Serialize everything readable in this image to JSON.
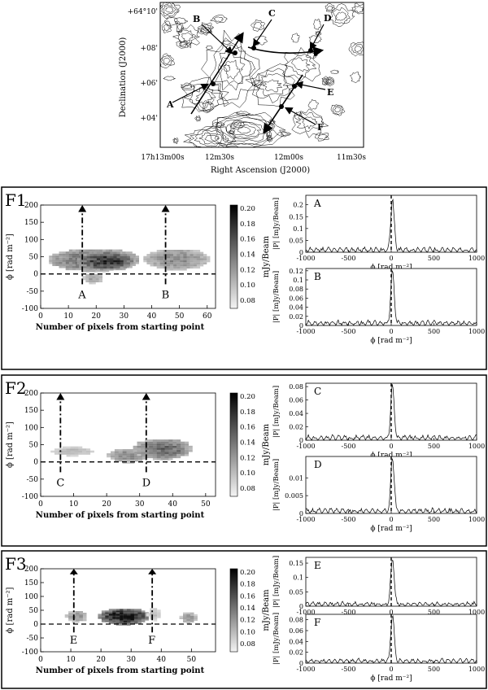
{
  "map": {
    "ylabel": "Declination (J2000)",
    "xlabel": "Right Ascension (J2000)",
    "yticks": [
      "+64°10'",
      "+08'",
      "+06'",
      "+04'"
    ],
    "xticks": [
      "17h13m00s",
      "12m30s",
      "12m00s",
      "11m30s"
    ],
    "points": [
      "A",
      "B",
      "C",
      "D",
      "E",
      "F"
    ]
  },
  "panels": [
    {
      "id": "F1",
      "map_xlabel": "Number of pixels from starting point",
      "map_ylabel": "ϕ [rad m⁻²]",
      "cbar_label": "mJy/Beam",
      "cbar_ticks": [
        "0.20",
        "0.18",
        "0.16",
        "0.14",
        "0.12",
        "0.10",
        "0.08"
      ],
      "xticks": [
        "0",
        "10",
        "20",
        "30",
        "40",
        "50",
        "60"
      ],
      "yticks": [
        "200",
        "150",
        "100",
        "50",
        "0",
        "-50",
        "-100"
      ],
      "markers": [
        {
          "label": "A",
          "x": 15
        },
        {
          "label": "B",
          "x": 45
        }
      ],
      "xmax": 63,
      "blobs": [
        {
          "x0": 3,
          "x1": 35,
          "y0": 5,
          "y1": 70,
          "d": 0.6
        },
        {
          "x0": 13,
          "x1": 33,
          "y0": 10,
          "y1": 60,
          "d": 0.85
        },
        {
          "x0": 37,
          "x1": 60,
          "y0": 10,
          "y1": 70,
          "d": 0.45
        },
        {
          "x0": 15,
          "x1": 22,
          "y0": -30,
          "y1": 0,
          "d": 0.35
        }
      ],
      "spectra": [
        {
          "label": "A",
          "ylabel": "|P| [mJy/Beam]",
          "yticks": [
            "0.2",
            "0.15",
            "0.1",
            "0.05",
            "0"
          ],
          "ymax": 0.24,
          "peak": 0.215
        },
        {
          "label": "B",
          "ylabel": "|P| [mJy/Beam]",
          "yticks": [
            "0.12",
            "0.1",
            "0.08",
            "0.06",
            "0.04",
            "0.02",
            "0"
          ],
          "ymax": 0.125,
          "peak": 0.115
        }
      ]
    },
    {
      "id": "F2",
      "map_xlabel": "Number of pixels from starting point",
      "map_ylabel": "ϕ [rad m⁻²]",
      "cbar_label": "mJy/Beam",
      "cbar_ticks": [
        "0.20",
        "0.18",
        "0.16",
        "0.14",
        "0.12",
        "0.10",
        "0.08"
      ],
      "xticks": [
        "0",
        "10",
        "20",
        "30",
        "40",
        "50"
      ],
      "yticks": [
        "200",
        "150",
        "100",
        "50",
        "0",
        "-50",
        "-100"
      ],
      "markers": [
        {
          "label": "C",
          "x": 6
        },
        {
          "label": "D",
          "x": 32
        }
      ],
      "xmax": 53,
      "blobs": [
        {
          "x0": 3,
          "x1": 15,
          "y0": 15,
          "y1": 40,
          "d": 0.25
        },
        {
          "x0": 20,
          "x1": 32,
          "y0": -5,
          "y1": 35,
          "d": 0.45
        },
        {
          "x0": 28,
          "x1": 45,
          "y0": 5,
          "y1": 65,
          "d": 0.6
        }
      ],
      "spectra": [
        {
          "label": "C",
          "ylabel": "|P| [mJy/Beam]",
          "yticks": [
            "0.08",
            "0.06",
            "0.04",
            "0.02",
            "0"
          ],
          "ymax": 0.085,
          "peak": 0.078
        },
        {
          "label": "D",
          "ylabel": "|P| [mJy/Beam]",
          "yticks": [
            "0.01",
            "0.005",
            "0"
          ],
          "ymax": 0.016,
          "peak": 0.015
        }
      ]
    },
    {
      "id": "F3",
      "map_xlabel": "Number of pixels from starting point",
      "map_ylabel": "ϕ [rad m⁻²]",
      "cbar_label": "mJy/Beam",
      "cbar_ticks": [
        "0.20",
        "0.18",
        "0.16",
        "0.14",
        "0.12",
        "0.10",
        "0.08"
      ],
      "xticks": [
        "0",
        "10",
        "20",
        "30",
        "40",
        "50"
      ],
      "yticks": [
        "200",
        "150",
        "100",
        "50",
        "0",
        "-50",
        "-100"
      ],
      "markers": [
        {
          "label": "E",
          "x": 11
        },
        {
          "label": "F",
          "x": 37
        }
      ],
      "xmax": 58,
      "blobs": [
        {
          "x0": 8,
          "x1": 15,
          "y0": 5,
          "y1": 45,
          "d": 0.4
        },
        {
          "x0": 19,
          "x1": 35,
          "y0": -5,
          "y1": 55,
          "d": 1.0
        },
        {
          "x0": 35,
          "x1": 39,
          "y0": 10,
          "y1": 55,
          "d": 0.2
        },
        {
          "x0": 46,
          "x1": 51,
          "y0": 0,
          "y1": 40,
          "d": 0.4
        }
      ],
      "spectra": [
        {
          "label": "E",
          "ylabel": "|P| [mJy/Beam]",
          "yticks": [
            "0.15",
            "0.1",
            "0.05",
            "0"
          ],
          "ymax": 0.17,
          "peak": 0.16
        },
        {
          "label": "F",
          "ylabel": "|P| [mJy/Beam]",
          "yticks": [
            "0.08",
            "0.06",
            "0.04",
            "0.02",
            "0"
          ],
          "ymax": 0.09,
          "peak": 0.085
        }
      ]
    }
  ],
  "spectrum_xlabel": "ϕ [rad m⁻²]",
  "spectrum_xticks": [
    "-1000",
    "-500",
    "0",
    "500",
    "1000"
  ]
}
